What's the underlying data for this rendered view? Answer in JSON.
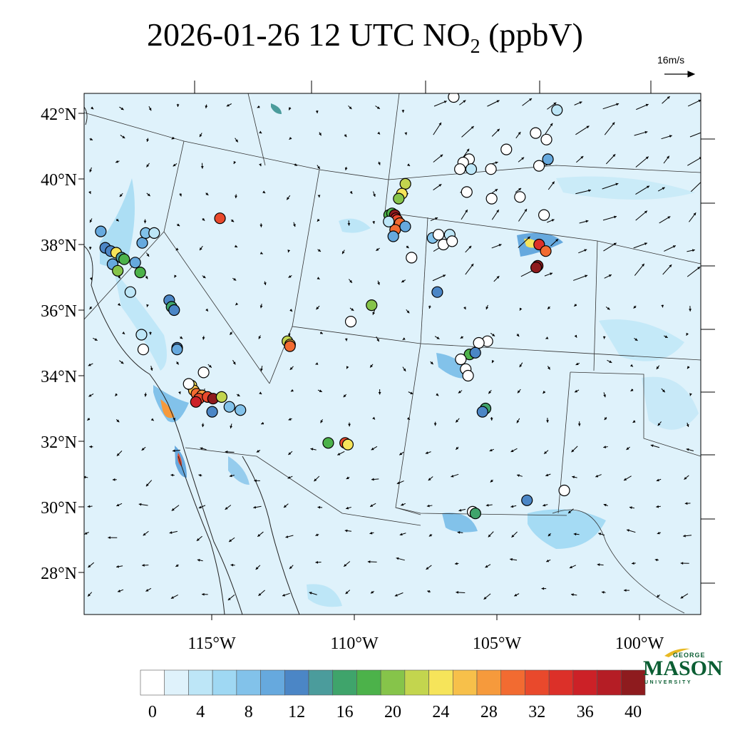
{
  "title_main": "2026-01-26 12 UTC NO",
  "title_sub": "2",
  "title_tail": " (ppbV)",
  "reference_vector_label": "16m/s",
  "lat_labels": [
    "42°N",
    "40°N",
    "38°N",
    "36°N",
    "34°N",
    "32°N",
    "30°N",
    "28°N"
  ],
  "lon_labels": [
    "115°W",
    "110°W",
    "105°W",
    "100°W"
  ],
  "colorbar": {
    "tick_labels": [
      "0",
      "4",
      "8",
      "12",
      "16",
      "20",
      "24",
      "28",
      "32",
      "36",
      "40"
    ],
    "colors": [
      "#ffffff",
      "#dff2fb",
      "#bde6f7",
      "#9fd8f3",
      "#82c2ea",
      "#66a9de",
      "#4b86c6",
      "#4b9c9c",
      "#3fa46b",
      "#4cb24a",
      "#86c44a",
      "#c3d54e",
      "#f6e45a",
      "#f7c04a",
      "#f69a3c",
      "#f26b31",
      "#e9492c",
      "#dc3029",
      "#cc2127",
      "#b51d25",
      "#8e1b1e"
    ]
  },
  "map_colors": {
    "background": "#dff2fb",
    "borders": "#333333",
    "coast": "#222222"
  },
  "logo": {
    "line1": "GEORGE",
    "line2": "MASON",
    "line3": "UNIVERSITY"
  },
  "stations": [
    {
      "lon": -120.2,
      "lat": 38.4,
      "value": 8
    },
    {
      "lon": -120.0,
      "lat": 37.9,
      "value": 10
    },
    {
      "lon": -119.8,
      "lat": 37.8,
      "value": 10
    },
    {
      "lon": -119.7,
      "lat": 37.4,
      "value": 9
    },
    {
      "lon": -119.6,
      "lat": 37.75,
      "value": 22
    },
    {
      "lon": -119.4,
      "lat": 37.6,
      "value": 12
    },
    {
      "lon": -119.5,
      "lat": 37.2,
      "value": 18
    },
    {
      "lon": -119.3,
      "lat": 37.55,
      "value": 17
    },
    {
      "lon": -118.9,
      "lat": 37.45,
      "value": 9
    },
    {
      "lon": -118.7,
      "lat": 38.05,
      "value": 8
    },
    {
      "lon": -118.6,
      "lat": 38.35,
      "value": 6
    },
    {
      "lon": -118.3,
      "lat": 38.35,
      "value": 3
    },
    {
      "lon": -118.7,
      "lat": 37.15,
      "value": 17
    },
    {
      "lon": -119.0,
      "lat": 36.55,
      "value": 2
    },
    {
      "lon": -117.6,
      "lat": 36.3,
      "value": 10
    },
    {
      "lon": -117.5,
      "lat": 36.1,
      "value": 14
    },
    {
      "lon": -117.4,
      "lat": 36.0,
      "value": 10
    },
    {
      "lon": -118.5,
      "lat": 35.25,
      "value": 2
    },
    {
      "lon": -118.4,
      "lat": 34.8,
      "value": 1
    },
    {
      "lon": -117.2,
      "lat": 34.85,
      "value": 10
    },
    {
      "lon": -117.2,
      "lat": 34.8,
      "value": 9
    },
    {
      "lon": -116.2,
      "lat": 34.1,
      "value": 1
    },
    {
      "lon": -116.6,
      "lat": 33.7,
      "value": 22
    },
    {
      "lon": -116.5,
      "lat": 33.55,
      "value": 25
    },
    {
      "lon": -116.4,
      "lat": 33.45,
      "value": 28
    },
    {
      "lon": -116.2,
      "lat": 33.4,
      "value": 26
    },
    {
      "lon": -116.3,
      "lat": 33.3,
      "value": 30
    },
    {
      "lon": -116.4,
      "lat": 33.2,
      "value": 34
    },
    {
      "lon": -116.0,
      "lat": 33.35,
      "value": 30
    },
    {
      "lon": -115.8,
      "lat": 33.3,
      "value": 38
    },
    {
      "lon": -115.5,
      "lat": 33.35,
      "value": 20
    },
    {
      "lon": -115.8,
      "lat": 32.9,
      "value": 10
    },
    {
      "lon": -115.2,
      "lat": 33.05,
      "value": 6
    },
    {
      "lon": -114.8,
      "lat": 32.95,
      "value": 7
    },
    {
      "lon": -116.7,
      "lat": 33.75,
      "value": 1
    },
    {
      "lon": -116.0,
      "lat": 38.8,
      "value": 30
    },
    {
      "lon": -113.3,
      "lat": 35.05,
      "value": 20
    },
    {
      "lon": -113.2,
      "lat": 34.95,
      "value": 24
    },
    {
      "lon": -113.2,
      "lat": 34.9,
      "value": 28
    },
    {
      "lon": -111.6,
      "lat": 31.95,
      "value": 17
    },
    {
      "lon": -111.0,
      "lat": 31.95,
      "value": 30
    },
    {
      "lon": -110.9,
      "lat": 31.9,
      "value": 22
    },
    {
      "lon": -110.4,
      "lat": 36.15,
      "value": 19
    },
    {
      "lon": -111.1,
      "lat": 35.65,
      "value": 1
    },
    {
      "lon": -109.5,
      "lat": 39.85,
      "value": 21
    },
    {
      "lon": -109.6,
      "lat": 39.55,
      "value": 23
    },
    {
      "lon": -109.7,
      "lat": 39.4,
      "value": 18
    },
    {
      "lon": -110.0,
      "lat": 38.9,
      "value": 17
    },
    {
      "lon": -109.9,
      "lat": 38.95,
      "value": 16
    },
    {
      "lon": -109.8,
      "lat": 38.9,
      "value": 38
    },
    {
      "lon": -109.75,
      "lat": 38.8,
      "value": 34
    },
    {
      "lon": -109.7,
      "lat": 38.75,
      "value": 30
    },
    {
      "lon": -109.6,
      "lat": 38.65,
      "value": 28
    },
    {
      "lon": -109.75,
      "lat": 38.45,
      "value": 28
    },
    {
      "lon": -109.8,
      "lat": 38.25,
      "value": 8
    },
    {
      "lon": -110.0,
      "lat": 38.7,
      "value": 2
    },
    {
      "lon": -109.4,
      "lat": 38.55,
      "value": 8
    },
    {
      "lon": -109.1,
      "lat": 37.6,
      "value": 1
    },
    {
      "lon": -108.4,
      "lat": 38.2,
      "value": 6
    },
    {
      "lon": -108.2,
      "lat": 38.3,
      "value": 1
    },
    {
      "lon": -108.0,
      "lat": 38.0,
      "value": 1
    },
    {
      "lon": -107.8,
      "lat": 38.3,
      "value": 2
    },
    {
      "lon": -107.7,
      "lat": 38.1,
      "value": 1
    },
    {
      "lon": -107.3,
      "lat": 40.6,
      "value": 1
    },
    {
      "lon": -107.5,
      "lat": 40.5,
      "value": 1
    },
    {
      "lon": -107.2,
      "lat": 40.3,
      "value": 2
    },
    {
      "lon": -107.6,
      "lat": 40.3,
      "value": 1
    },
    {
      "lon": -107.3,
      "lat": 39.6,
      "value": 1
    },
    {
      "lon": -106.5,
      "lat": 40.3,
      "value": 1
    },
    {
      "lon": -106.0,
      "lat": 40.9,
      "value": 1
    },
    {
      "lon": -105.4,
      "lat": 39.45,
      "value": 1
    },
    {
      "lon": -105.0,
      "lat": 41.4,
      "value": 1
    },
    {
      "lon": -104.6,
      "lat": 41.2,
      "value": 1
    },
    {
      "lon": -104.3,
      "lat": 42.1,
      "value": 2
    },
    {
      "lon": -104.5,
      "lat": 40.6,
      "value": 8
    },
    {
      "lon": -104.8,
      "lat": 40.4,
      "value": 1
    },
    {
      "lon": -106.4,
      "lat": 39.4,
      "value": 1
    },
    {
      "lon": -104.5,
      "lat": 38.9,
      "value": 1
    },
    {
      "lon": -108.0,
      "lat": 42.5,
      "value": 1
    },
    {
      "lon": -108.1,
      "lat": 36.55,
      "value": 10
    },
    {
      "lon": -104.6,
      "lat": 38.0,
      "value": 32
    },
    {
      "lon": -104.35,
      "lat": 37.8,
      "value": 28
    },
    {
      "lon": -104.6,
      "lat": 37.35,
      "value": 38
    },
    {
      "lon": -104.65,
      "lat": 37.3,
      "value": 40
    },
    {
      "lon": -106.2,
      "lat": 35.05,
      "value": 1
    },
    {
      "lon": -106.5,
      "lat": 35.0,
      "value": 1
    },
    {
      "lon": -106.8,
      "lat": 34.65,
      "value": 17
    },
    {
      "lon": -106.6,
      "lat": 34.7,
      "value": 10
    },
    {
      "lon": -106.9,
      "lat": 34.2,
      "value": 1
    },
    {
      "lon": -107.1,
      "lat": 34.5,
      "value": 1
    },
    {
      "lon": -106.8,
      "lat": 34.0,
      "value": 1
    },
    {
      "lon": -106.1,
      "lat": 33.0,
      "value": 14
    },
    {
      "lon": -106.2,
      "lat": 32.9,
      "value": 10
    },
    {
      "lon": -104.4,
      "lat": 30.2,
      "value": 10
    },
    {
      "lon": -103.1,
      "lat": 30.5,
      "value": 1
    },
    {
      "lon": -106.3,
      "lat": 29.85,
      "value": 1
    },
    {
      "lon": -106.2,
      "lat": 29.8,
      "value": 15
    }
  ]
}
